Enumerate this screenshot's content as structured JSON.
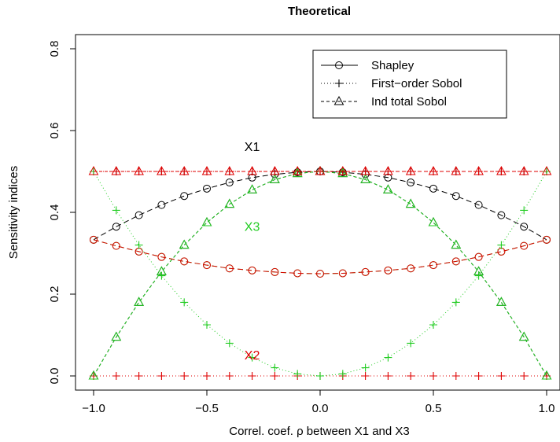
{
  "chart_data": {
    "type": "line",
    "title": "Theoretical",
    "xlabel": "Correl. coef. ρ between X1 and X3",
    "ylabel": "Sensitivity indices",
    "xlim": [
      -1.0,
      1.0
    ],
    "ylim": [
      0.0,
      0.8
    ],
    "x_ticks": [
      -1.0,
      -0.5,
      0.0,
      0.5,
      1.0
    ],
    "x_tick_labels": [
      "−1.0",
      "−0.5",
      "0.0",
      "0.5",
      "1.0"
    ],
    "y_ticks": [
      0.0,
      0.2,
      0.4,
      0.6,
      0.8
    ],
    "y_tick_labels": [
      "0.0",
      "0.2",
      "0.4",
      "0.6",
      "0.8"
    ],
    "grid": false,
    "legend": {
      "position": "top-right",
      "entries": [
        {
          "label": "Shapley",
          "line": "solid",
          "marker": "circle"
        },
        {
          "label": "First−order Sobol",
          "line": "dotted",
          "marker": "plus"
        },
        {
          "label": "Ind total Sobol",
          "line": "dashed",
          "marker": "triangle"
        }
      ]
    },
    "colors": {
      "X1": "#000000",
      "X2": "#df0000",
      "X3": "#22cc22"
    },
    "annotations": [
      {
        "text": "X1",
        "x": -0.3,
        "y": 0.55,
        "color": "#000000"
      },
      {
        "text": "X3",
        "x": -0.3,
        "y": 0.355,
        "color": "#22cc22"
      },
      {
        "text": "X2",
        "x": -0.3,
        "y": 0.04,
        "color": "#df0000"
      }
    ],
    "x": [
      -1.0,
      -0.9,
      -0.8,
      -0.7,
      -0.6,
      -0.5,
      -0.4,
      -0.3,
      -0.2,
      -0.1,
      0.0,
      0.1,
      0.2,
      0.3,
      0.4,
      0.5,
      0.6,
      0.7,
      0.8,
      0.9,
      1.0
    ],
    "series": [
      {
        "variable": "X1",
        "index": "Shapley",
        "values": [
          0.333,
          0.365,
          0.393,
          0.418,
          0.44,
          0.458,
          0.473,
          0.485,
          0.493,
          0.498,
          0.5,
          0.498,
          0.493,
          0.485,
          0.473,
          0.458,
          0.44,
          0.418,
          0.393,
          0.365,
          0.333
        ]
      },
      {
        "variable": "X3",
        "index": "Shapley",
        "values": [
          0.333,
          0.318,
          0.304,
          0.291,
          0.28,
          0.271,
          0.263,
          0.258,
          0.254,
          0.251,
          0.25,
          0.251,
          0.254,
          0.258,
          0.263,
          0.271,
          0.28,
          0.291,
          0.304,
          0.318,
          0.333
        ]
      },
      {
        "variable": "X2",
        "index": "Shapley",
        "values": [
          0.333,
          0.318,
          0.304,
          0.291,
          0.28,
          0.271,
          0.263,
          0.258,
          0.254,
          0.251,
          0.25,
          0.251,
          0.254,
          0.258,
          0.263,
          0.271,
          0.28,
          0.291,
          0.304,
          0.318,
          0.333
        ]
      },
      {
        "variable": "X1",
        "index": "First−order Sobol",
        "values": [
          0.5,
          0.5,
          0.5,
          0.5,
          0.5,
          0.5,
          0.5,
          0.5,
          0.5,
          0.5,
          0.5,
          0.5,
          0.5,
          0.5,
          0.5,
          0.5,
          0.5,
          0.5,
          0.5,
          0.5,
          0.5
        ]
      },
      {
        "variable": "X2",
        "index": "First−order Sobol",
        "values": [
          0.5,
          0.5,
          0.5,
          0.5,
          0.5,
          0.5,
          0.5,
          0.5,
          0.5,
          0.5,
          0.5,
          0.5,
          0.5,
          0.5,
          0.5,
          0.5,
          0.5,
          0.5,
          0.5,
          0.5,
          0.5
        ]
      },
      {
        "variable": "X2",
        "index": "First−order Sobol (lower)",
        "values": [
          0.0,
          0.0,
          0.0,
          0.0,
          0.0,
          0.0,
          0.0,
          0.0,
          0.0,
          0.0,
          0.0,
          0.0,
          0.0,
          0.0,
          0.0,
          0.0,
          0.0,
          0.0,
          0.0,
          0.0,
          0.0
        ]
      },
      {
        "variable": "X3",
        "index": "First−order Sobol",
        "values": [
          0.5,
          0.405,
          0.32,
          0.245,
          0.18,
          0.125,
          0.08,
          0.045,
          0.02,
          0.005,
          0.0,
          0.005,
          0.02,
          0.045,
          0.08,
          0.125,
          0.18,
          0.245,
          0.32,
          0.405,
          0.5
        ]
      },
      {
        "variable": "X1",
        "index": "Ind total Sobol",
        "values": [
          0.0,
          0.095,
          0.18,
          0.255,
          0.32,
          0.375,
          0.42,
          0.455,
          0.48,
          0.495,
          0.5,
          0.495,
          0.48,
          0.455,
          0.42,
          0.375,
          0.32,
          0.255,
          0.18,
          0.095,
          0.0
        ]
      },
      {
        "variable": "X3",
        "index": "Ind total Sobol",
        "values": [
          0.0,
          0.095,
          0.18,
          0.255,
          0.32,
          0.375,
          0.42,
          0.455,
          0.48,
          0.495,
          0.5,
          0.495,
          0.48,
          0.455,
          0.42,
          0.375,
          0.32,
          0.255,
          0.18,
          0.095,
          0.0
        ]
      },
      {
        "variable": "X2",
        "index": "Ind total Sobol",
        "values": [
          0.5,
          0.5,
          0.5,
          0.5,
          0.5,
          0.5,
          0.5,
          0.5,
          0.5,
          0.5,
          0.5,
          0.5,
          0.5,
          0.5,
          0.5,
          0.5,
          0.5,
          0.5,
          0.5,
          0.5,
          0.5
        ]
      }
    ]
  }
}
